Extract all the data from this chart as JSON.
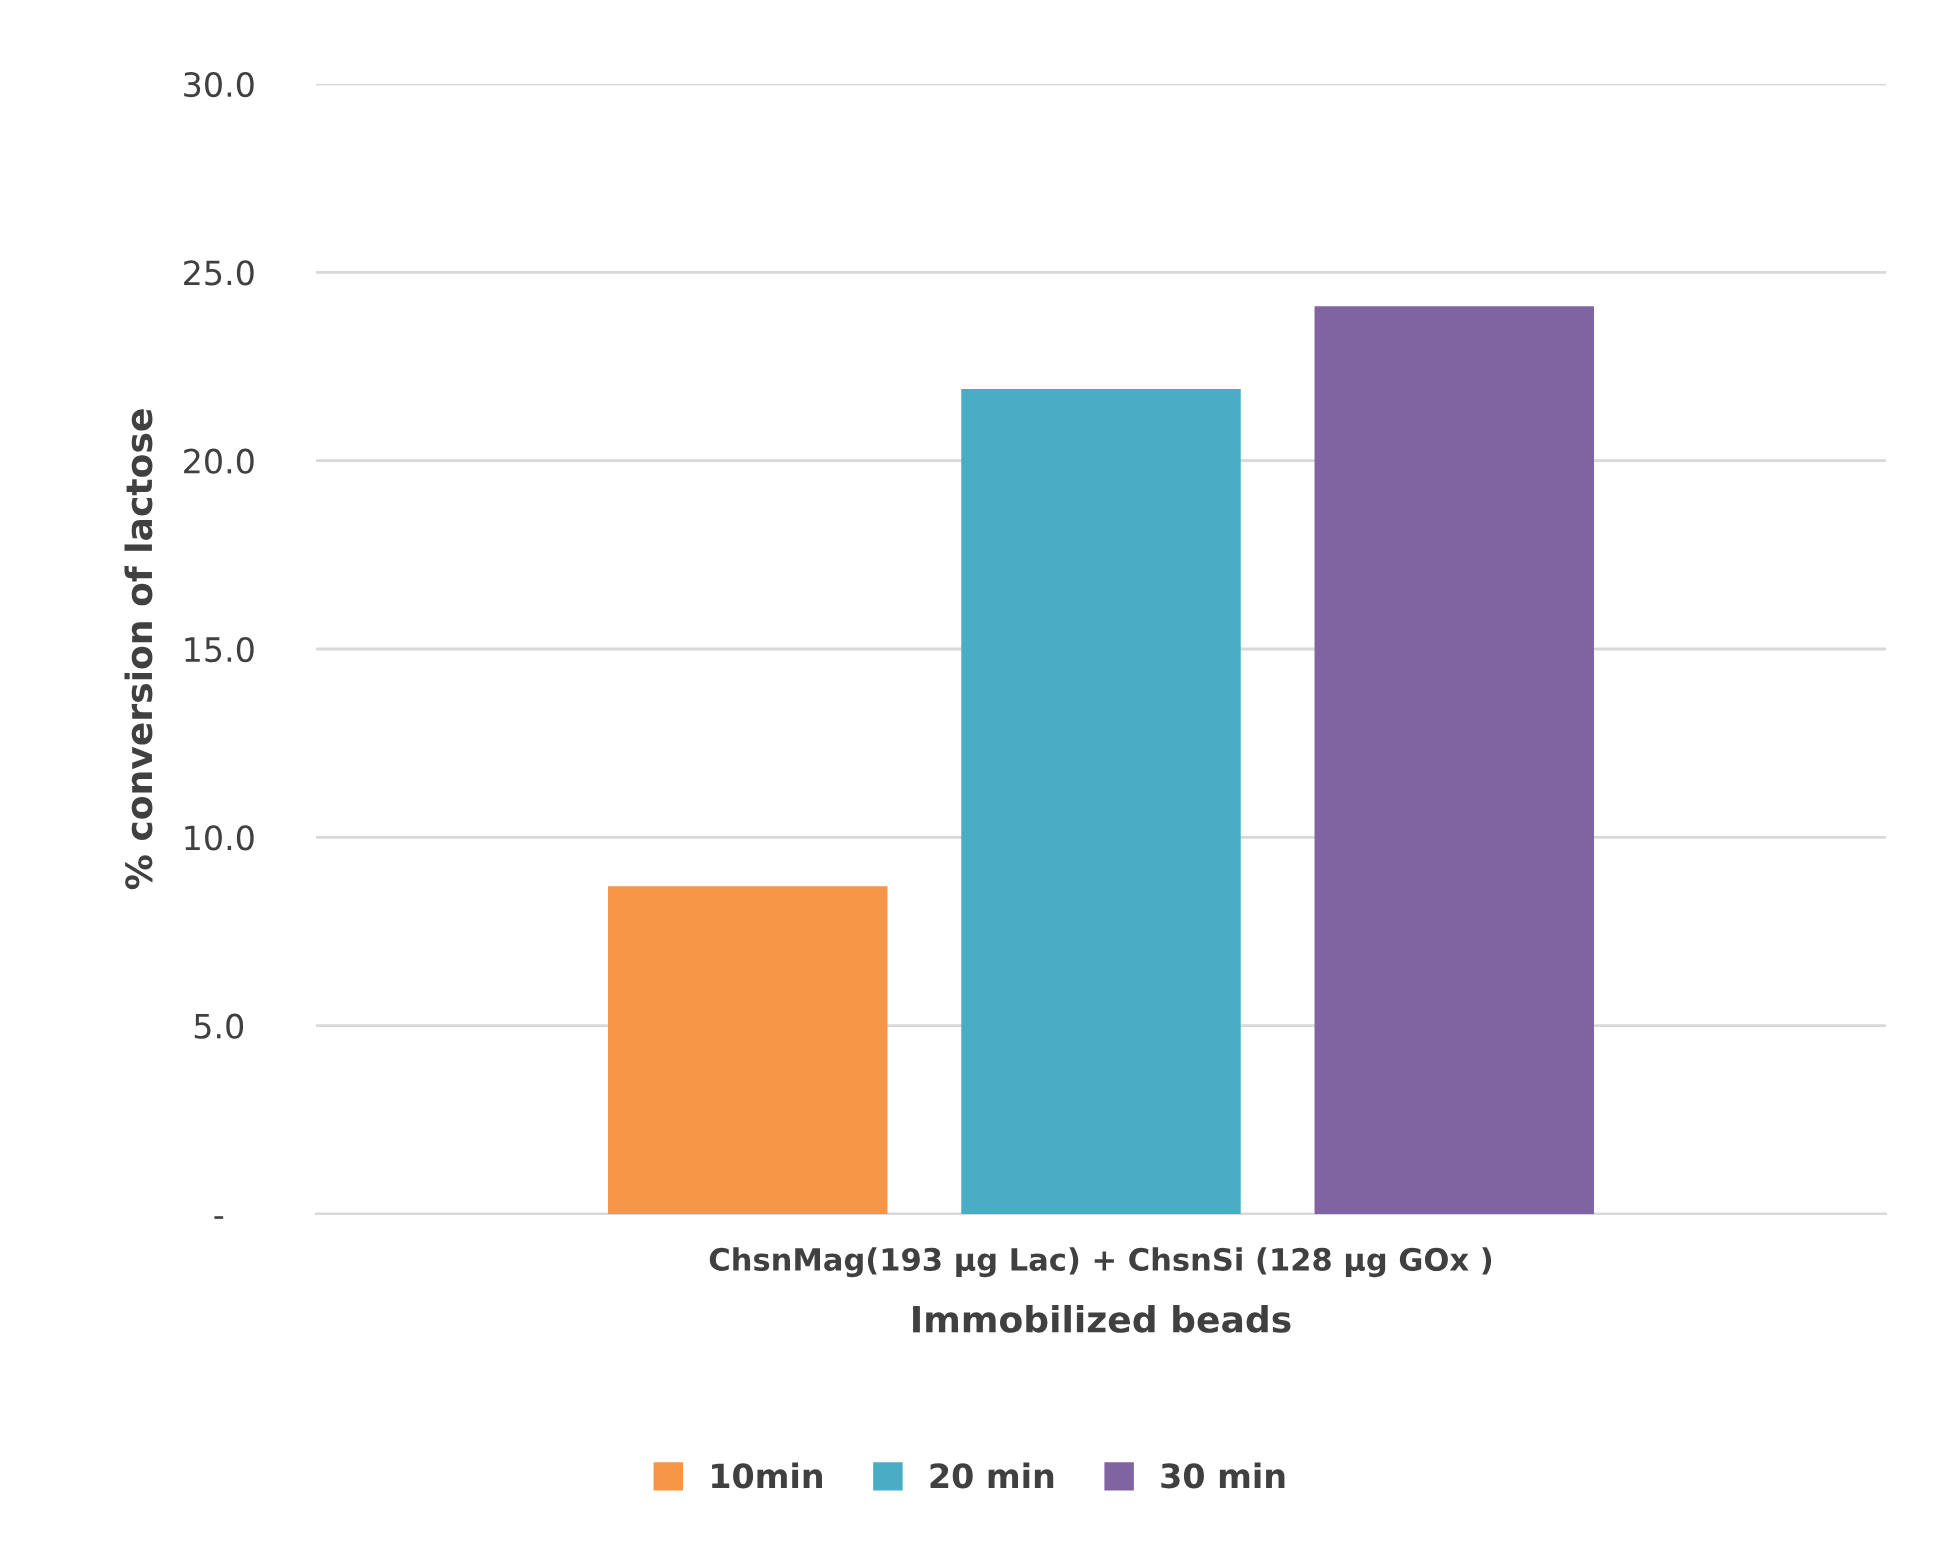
{
  "chart_data": {
    "type": "bar",
    "xlabel": "Immobilized beads",
    "ylabel": "% conversion of lactose",
    "categories": [
      "ChsnMag(193 µg Lac) + ChsnSi (128 µg GOx )"
    ],
    "series": [
      {
        "name": "10min",
        "color": "#f79646",
        "values": [
          8.7
        ]
      },
      {
        "name": "20 min",
        "color": "#4bacc6",
        "values": [
          21.9
        ]
      },
      {
        "name": "30 min",
        "color": "#8064a2",
        "values": [
          24.1
        ]
      }
    ],
    "ylim": [
      0,
      30
    ],
    "yticks": [
      {
        "value": 0,
        "label": "-"
      },
      {
        "value": 5,
        "label": "5.0"
      },
      {
        "value": 10,
        "label": "10.0"
      },
      {
        "value": 15,
        "label": "15.0"
      },
      {
        "value": 20,
        "label": "20.0"
      },
      {
        "value": 25,
        "label": "25.0"
      },
      {
        "value": 30,
        "label": "30.0"
      }
    ],
    "grid": "y",
    "legend": "bottom"
  }
}
